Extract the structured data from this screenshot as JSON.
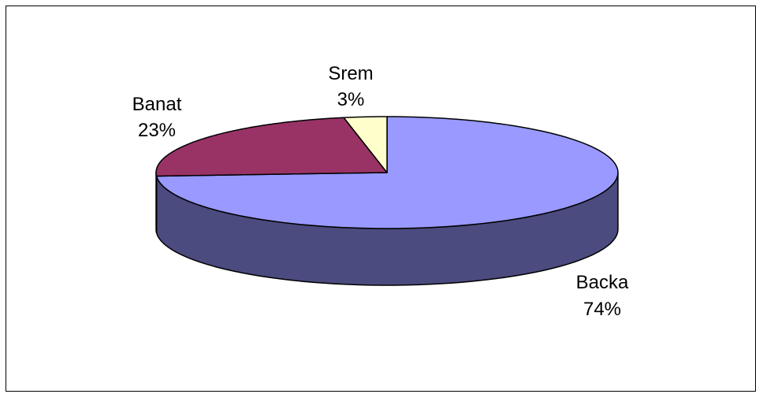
{
  "chart_data": {
    "type": "pie",
    "style": "3d",
    "title": "",
    "slices": [
      {
        "name": "Backa",
        "value": 74,
        "label": "74%",
        "color": "#9999FF",
        "side_color": "#4B4B7F"
      },
      {
        "name": "Banat",
        "value": 23,
        "label": "23%",
        "color": "#993366",
        "side_color": "#4C1933"
      },
      {
        "name": "Srem",
        "value": 3,
        "label": "3%",
        "color": "#FFFFCC",
        "side_color": "#7F7F66"
      }
    ],
    "legend": "none",
    "data_labels": "category-and-percent"
  }
}
